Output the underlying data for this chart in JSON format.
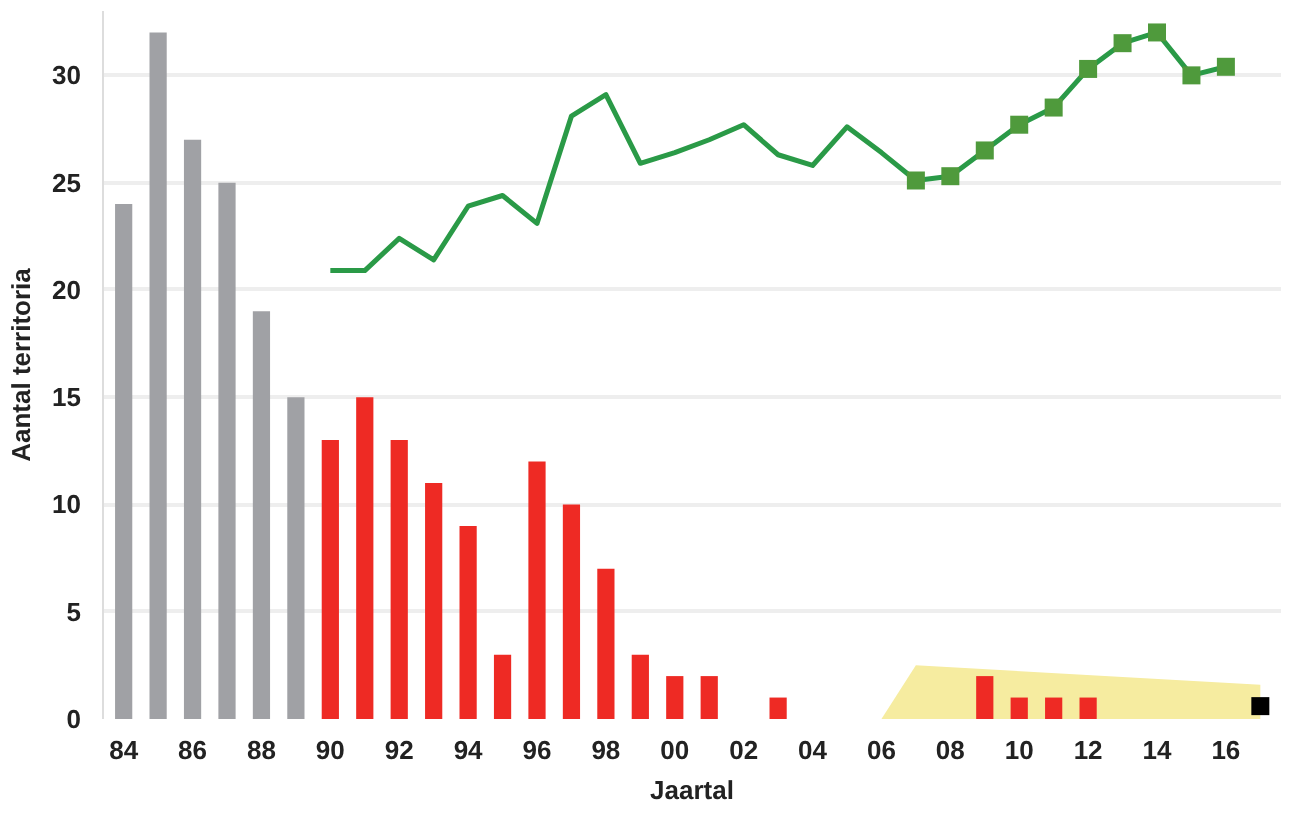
{
  "chart_data": {
    "type": "bar",
    "xlabel": "Jaartal",
    "ylabel": "Aantal territoria",
    "xlim": [
      1983.4,
      2017.6
    ],
    "ylim": [
      0,
      33
    ],
    "xticks": [
      {
        "value": 1984,
        "label": "84"
      },
      {
        "value": 1986,
        "label": "86"
      },
      {
        "value": 1988,
        "label": "88"
      },
      {
        "value": 1990,
        "label": "90"
      },
      {
        "value": 1992,
        "label": "92"
      },
      {
        "value": 1994,
        "label": "94"
      },
      {
        "value": 1996,
        "label": "96"
      },
      {
        "value": 1998,
        "label": "98"
      },
      {
        "value": 2000,
        "label": "00"
      },
      {
        "value": 2002,
        "label": "02"
      },
      {
        "value": 2004,
        "label": "04"
      },
      {
        "value": 2006,
        "label": "06"
      },
      {
        "value": 2008,
        "label": "08"
      },
      {
        "value": 2010,
        "label": "10"
      },
      {
        "value": 2012,
        "label": "12"
      },
      {
        "value": 2014,
        "label": "14"
      },
      {
        "value": 2016,
        "label": "16"
      }
    ],
    "yticks": [
      0,
      5,
      10,
      15,
      20,
      25,
      30
    ],
    "grid": "y",
    "series": [
      {
        "type": "area",
        "color": "#f6eca0",
        "x": [
          2006,
          2007,
          2017
        ],
        "values": [
          0,
          2.5,
          1.6
        ]
      },
      {
        "color": "#a0a1a5",
        "x": [
          1984,
          1985,
          1986,
          1987,
          1988,
          1989
        ],
        "values": [
          24,
          32,
          27,
          25,
          19,
          15
        ]
      },
      {
        "color": "#ee2a24",
        "x": [
          1990,
          1991,
          1992,
          1993,
          1994,
          1995,
          1996,
          1997,
          1998,
          1999,
          2000,
          2001,
          2002,
          2003,
          2004,
          2005,
          2006,
          2007,
          2008,
          2009,
          2010,
          2011,
          2012
        ],
        "values": [
          13,
          15,
          13,
          11,
          9,
          3,
          12,
          10,
          7,
          3,
          2,
          2,
          0,
          1,
          0,
          0,
          0,
          0,
          0,
          2,
          1,
          1,
          1
        ]
      },
      {
        "type": "line",
        "color": "#2a9a47",
        "marker": "none",
        "x": [
          1990,
          1991,
          1992,
          1993,
          1994,
          1995,
          1996,
          1997,
          1998,
          1999,
          2000,
          2001,
          2002,
          2003,
          2004,
          2005,
          2006,
          2007
        ],
        "values": [
          20.9,
          20.9,
          22.4,
          21.4,
          23.9,
          24.4,
          23.1,
          28.1,
          29.1,
          25.9,
          26.4,
          27.0,
          27.7,
          26.3,
          25.8,
          27.6,
          26.4,
          25.1
        ]
      },
      {
        "type": "line",
        "color": "#2a9a47",
        "marker": "square",
        "x": [
          2007,
          2008,
          2009,
          2010,
          2011,
          2012,
          2013,
          2014,
          2015,
          2016
        ],
        "values": [
          25.1,
          25.3,
          26.5,
          27.7,
          28.5,
          30.3,
          31.5,
          32.0,
          30.0,
          30.4
        ]
      },
      {
        "type": "scatter",
        "color": "#000000",
        "marker": "square",
        "x": [
          2017
        ],
        "values": [
          0.6
        ]
      }
    ]
  }
}
